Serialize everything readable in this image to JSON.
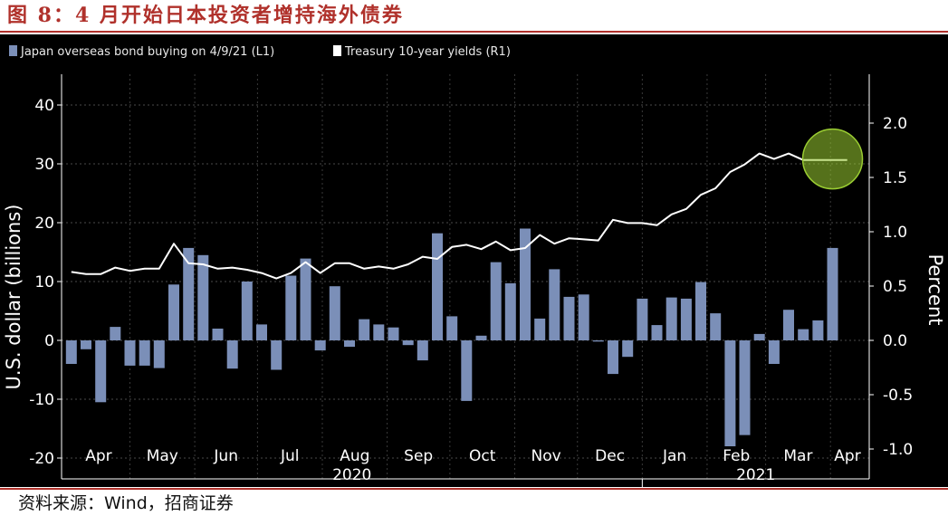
{
  "figure": {
    "title": "图 8：4 月开始日本投资者增持海外债券",
    "source": "资料来源：Wind，招商证券"
  },
  "colors": {
    "title": "#b0312b",
    "background": "#000000",
    "bar": "#7b8fb8",
    "line": "#ffffff",
    "highlight": "#9acd32"
  },
  "chart_data": {
    "type": "bar",
    "legend": {
      "placement": "top-left",
      "entries": [
        {
          "label": "Japan overseas bond buying  on 4/9/21 (L1)",
          "marker": "bar"
        },
        {
          "label": "Treasury 10-year yields (R1)",
          "marker": "line"
        }
      ]
    },
    "left_axis": {
      "title": "U.S. dollar (billions)",
      "range": [
        -23,
        41
      ],
      "ticks": [
        40,
        30,
        20,
        10,
        0,
        -10,
        -20
      ]
    },
    "right_axis": {
      "title": "Percent",
      "range": [
        -1.1,
        2.1
      ],
      "ticks": [
        "2.0",
        "1.5",
        "1.0",
        "0.5",
        "0.0",
        "-0.5",
        "-1.0"
      ]
    },
    "x_axis": {
      "month_labels": [
        "Apr",
        "May",
        "Jun",
        "Jul",
        "Aug",
        "Sep",
        "Oct",
        "Nov",
        "Dec",
        "Jan",
        "Feb",
        "Mar",
        "Apr"
      ],
      "year_labels": [
        "2020",
        "2021"
      ]
    },
    "grid": true,
    "series": [
      {
        "name": "Japan overseas bond buying  on 4/9/21 (L1)",
        "type": "bar",
        "axis": "left",
        "x": [
          "2020-04-03",
          "2020-04-10",
          "2020-04-17",
          "2020-04-24",
          "2020-05-01",
          "2020-05-08",
          "2020-05-15",
          "2020-05-22",
          "2020-05-29",
          "2020-06-05",
          "2020-06-12",
          "2020-06-19",
          "2020-06-26",
          "2020-07-03",
          "2020-07-10",
          "2020-07-17",
          "2020-07-24",
          "2020-07-31",
          "2020-08-07",
          "2020-08-14",
          "2020-08-21",
          "2020-08-28",
          "2020-09-04",
          "2020-09-11",
          "2020-09-18",
          "2020-09-25",
          "2020-10-02",
          "2020-10-09",
          "2020-10-16",
          "2020-10-23",
          "2020-10-30",
          "2020-11-06",
          "2020-11-13",
          "2020-11-20",
          "2020-11-27",
          "2020-12-04",
          "2020-12-11",
          "2020-12-18",
          "2020-12-25",
          "2021-01-01",
          "2021-01-08",
          "2021-01-15",
          "2021-01-22",
          "2021-01-29",
          "2021-02-05",
          "2021-02-12",
          "2021-02-19",
          "2021-02-26",
          "2021-03-05",
          "2021-03-12",
          "2021-03-19",
          "2021-03-26",
          "2021-04-02",
          "2021-04-09"
        ],
        "values": [
          -4.0,
          -1.5,
          -10.5,
          2.3,
          -4.3,
          -4.3,
          -4.7,
          9.5,
          15.7,
          14.5,
          2.0,
          -4.8,
          10.0,
          2.7,
          -5.0,
          11.0,
          13.9,
          -1.7,
          9.2,
          -1.1,
          3.6,
          2.7,
          2.2,
          -0.8,
          -3.4,
          18.2,
          4.1,
          -10.3,
          0.8,
          13.3,
          9.7,
          19.0,
          3.7,
          12.1,
          7.4,
          7.8,
          -0.2,
          -5.7,
          -2.8,
          7.1,
          2.6,
          7.3,
          7.1,
          9.9,
          4.6,
          -18.0,
          -16.1,
          1.1,
          -4.0,
          5.2,
          1.9,
          3.4,
          15.7,
          0.0
        ]
      },
      {
        "name": "Treasury 10-year yields (R1)",
        "type": "line",
        "axis": "right",
        "x": [
          "2020-04-03",
          "2020-04-10",
          "2020-04-17",
          "2020-04-24",
          "2020-05-01",
          "2020-05-08",
          "2020-05-15",
          "2020-05-22",
          "2020-05-29",
          "2020-06-05",
          "2020-06-12",
          "2020-06-19",
          "2020-06-26",
          "2020-07-03",
          "2020-07-10",
          "2020-07-17",
          "2020-07-24",
          "2020-07-31",
          "2020-08-07",
          "2020-08-14",
          "2020-08-21",
          "2020-08-28",
          "2020-09-04",
          "2020-09-11",
          "2020-09-18",
          "2020-09-25",
          "2020-10-02",
          "2020-10-09",
          "2020-10-16",
          "2020-10-23",
          "2020-10-30",
          "2020-11-06",
          "2020-11-13",
          "2020-11-20",
          "2020-11-27",
          "2020-12-04",
          "2020-12-11",
          "2020-12-18",
          "2020-12-25",
          "2021-01-01",
          "2021-01-08",
          "2021-01-15",
          "2021-01-22",
          "2021-01-29",
          "2021-02-05",
          "2021-02-12",
          "2021-02-19",
          "2021-02-26",
          "2021-03-05",
          "2021-03-12",
          "2021-03-19",
          "2021-03-26",
          "2021-04-02",
          "2021-04-09"
        ],
        "values": [
          0.63,
          0.61,
          0.61,
          0.67,
          0.64,
          0.66,
          0.66,
          0.89,
          0.71,
          0.7,
          0.66,
          0.67,
          0.65,
          0.62,
          0.57,
          0.62,
          0.72,
          0.62,
          0.71,
          0.71,
          0.66,
          0.68,
          0.66,
          0.7,
          0.77,
          0.75,
          0.86,
          0.88,
          0.84,
          0.91,
          0.83,
          0.85,
          0.97,
          0.89,
          0.94,
          0.93,
          0.92,
          1.11,
          1.08,
          1.08,
          1.06,
          1.16,
          1.21,
          1.34,
          1.4,
          1.55,
          1.62,
          1.72,
          1.67,
          1.72,
          1.66,
          1.66,
          1.66,
          1.66
        ]
      }
    ],
    "annotations": [
      {
        "type": "circle-highlight",
        "around": "2021-04-02",
        "axis": "right",
        "value": 1.67
      }
    ]
  }
}
